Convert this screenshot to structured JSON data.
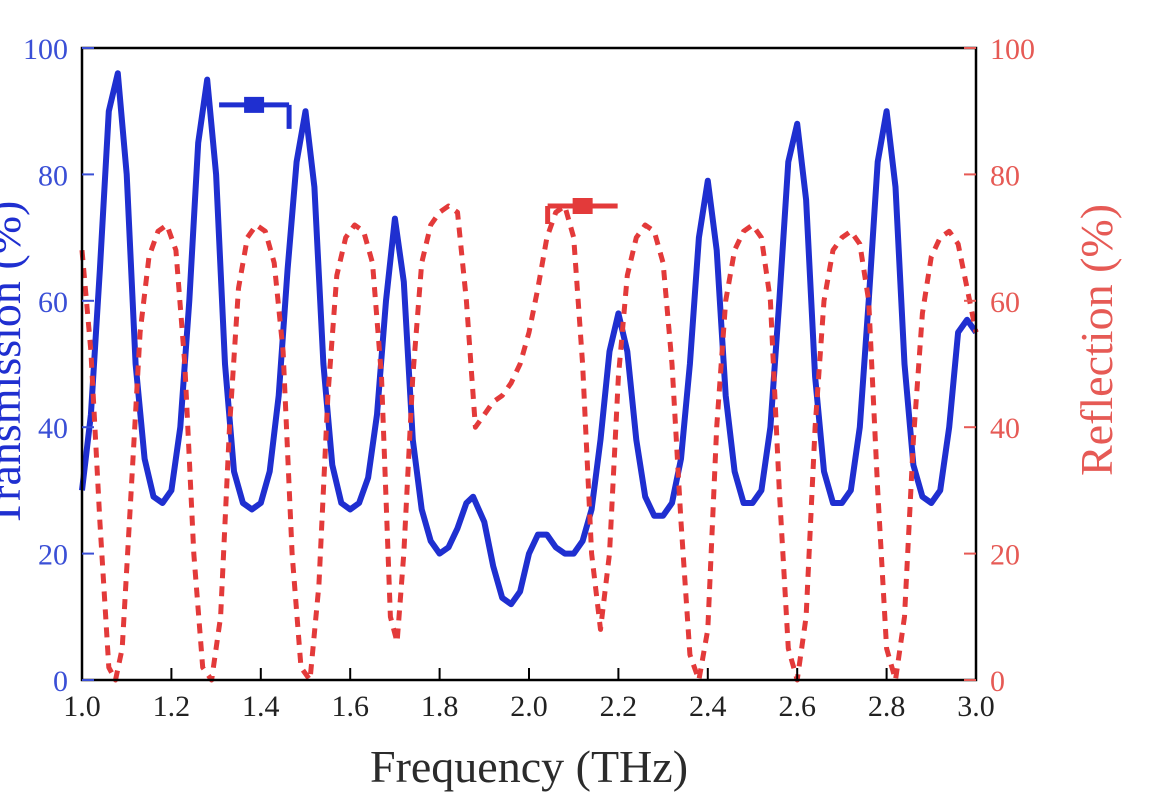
{
  "chart_data": {
    "type": "line",
    "title": "",
    "xlabel": "Frequency (THz)",
    "ylabel_left": "Transmission (%)",
    "ylabel_right": "Reflection (%)",
    "xlim": [
      1.0,
      3.0
    ],
    "ylim_left": [
      0,
      100
    ],
    "ylim_right": [
      0,
      100
    ],
    "x_ticks": [
      1.0,
      1.2,
      1.4,
      1.6,
      1.8,
      2.0,
      2.2,
      2.4,
      2.6,
      2.8,
      3.0
    ],
    "x_tick_labels": [
      "1.0",
      "1.2",
      "1.4",
      "1.6",
      "1.8",
      "2.0",
      "2.2",
      "2.4",
      "2.6",
      "2.8",
      "3.0"
    ],
    "y_ticks": [
      0,
      20,
      40,
      60,
      80,
      100
    ],
    "y_tick_labels": [
      "0",
      "20",
      "40",
      "60",
      "80",
      "100"
    ],
    "grid": false,
    "colors": {
      "transmission": "#1f2fd0",
      "reflection": "#e33a3a",
      "axis_left": "#3a4fd6",
      "axis_right": "#e65a55",
      "frame": "#000000"
    },
    "series": [
      {
        "name": "Transmission",
        "axis": "left",
        "style": "solid",
        "marker_at": {
          "x": 1.385,
          "y": 91
        },
        "points": [
          [
            1.0,
            30
          ],
          [
            1.02,
            42
          ],
          [
            1.04,
            65
          ],
          [
            1.06,
            90
          ],
          [
            1.08,
            96
          ],
          [
            1.1,
            80
          ],
          [
            1.12,
            50
          ],
          [
            1.14,
            35
          ],
          [
            1.16,
            29
          ],
          [
            1.18,
            28
          ],
          [
            1.2,
            30
          ],
          [
            1.22,
            40
          ],
          [
            1.24,
            60
          ],
          [
            1.26,
            85
          ],
          [
            1.28,
            95
          ],
          [
            1.3,
            80
          ],
          [
            1.32,
            50
          ],
          [
            1.34,
            33
          ],
          [
            1.36,
            28
          ],
          [
            1.38,
            27
          ],
          [
            1.4,
            28
          ],
          [
            1.42,
            33
          ],
          [
            1.44,
            45
          ],
          [
            1.46,
            65
          ],
          [
            1.48,
            82
          ],
          [
            1.5,
            90
          ],
          [
            1.52,
            78
          ],
          [
            1.54,
            50
          ],
          [
            1.56,
            34
          ],
          [
            1.58,
            28
          ],
          [
            1.6,
            27
          ],
          [
            1.62,
            28
          ],
          [
            1.64,
            32
          ],
          [
            1.66,
            42
          ],
          [
            1.68,
            60
          ],
          [
            1.7,
            73
          ],
          [
            1.72,
            63
          ],
          [
            1.74,
            38
          ],
          [
            1.76,
            27
          ],
          [
            1.78,
            22
          ],
          [
            1.8,
            20
          ],
          [
            1.82,
            21
          ],
          [
            1.84,
            24
          ],
          [
            1.86,
            28
          ],
          [
            1.875,
            29
          ],
          [
            1.9,
            25
          ],
          [
            1.92,
            18
          ],
          [
            1.94,
            13
          ],
          [
            1.96,
            12
          ],
          [
            1.98,
            14
          ],
          [
            2.0,
            20
          ],
          [
            2.02,
            23
          ],
          [
            2.04,
            23
          ],
          [
            2.06,
            21
          ],
          [
            2.08,
            20
          ],
          [
            2.1,
            20
          ],
          [
            2.12,
            22
          ],
          [
            2.14,
            27
          ],
          [
            2.16,
            38
          ],
          [
            2.18,
            52
          ],
          [
            2.2,
            58
          ],
          [
            2.22,
            52
          ],
          [
            2.24,
            38
          ],
          [
            2.26,
            29
          ],
          [
            2.28,
            26
          ],
          [
            2.3,
            26
          ],
          [
            2.32,
            28
          ],
          [
            2.34,
            35
          ],
          [
            2.36,
            50
          ],
          [
            2.38,
            70
          ],
          [
            2.4,
            79
          ],
          [
            2.42,
            68
          ],
          [
            2.44,
            45
          ],
          [
            2.46,
            33
          ],
          [
            2.48,
            28
          ],
          [
            2.5,
            28
          ],
          [
            2.52,
            30
          ],
          [
            2.54,
            40
          ],
          [
            2.56,
            60
          ],
          [
            2.58,
            82
          ],
          [
            2.6,
            88
          ],
          [
            2.62,
            76
          ],
          [
            2.64,
            48
          ],
          [
            2.66,
            33
          ],
          [
            2.68,
            28
          ],
          [
            2.7,
            28
          ],
          [
            2.72,
            30
          ],
          [
            2.74,
            40
          ],
          [
            2.76,
            60
          ],
          [
            2.78,
            82
          ],
          [
            2.8,
            90
          ],
          [
            2.82,
            78
          ],
          [
            2.84,
            50
          ],
          [
            2.86,
            34
          ],
          [
            2.88,
            29
          ],
          [
            2.9,
            28
          ],
          [
            2.92,
            30
          ],
          [
            2.94,
            40
          ],
          [
            2.96,
            55
          ],
          [
            2.98,
            57
          ],
          [
            3.0,
            55
          ]
        ]
      },
      {
        "name": "Reflection",
        "axis": "right",
        "style": "dashed",
        "marker_at": {
          "x": 2.12,
          "y": 75
        },
        "points": [
          [
            1.0,
            68
          ],
          [
            1.02,
            52
          ],
          [
            1.04,
            25
          ],
          [
            1.06,
            2
          ],
          [
            1.075,
            0
          ],
          [
            1.09,
            5
          ],
          [
            1.11,
            30
          ],
          [
            1.13,
            55
          ],
          [
            1.15,
            67
          ],
          [
            1.17,
            71
          ],
          [
            1.19,
            72
          ],
          [
            1.21,
            68
          ],
          [
            1.23,
            50
          ],
          [
            1.25,
            20
          ],
          [
            1.27,
            2
          ],
          [
            1.29,
            0
          ],
          [
            1.31,
            10
          ],
          [
            1.33,
            40
          ],
          [
            1.35,
            62
          ],
          [
            1.37,
            70
          ],
          [
            1.39,
            72
          ],
          [
            1.41,
            71
          ],
          [
            1.43,
            66
          ],
          [
            1.45,
            52
          ],
          [
            1.47,
            20
          ],
          [
            1.49,
            2
          ],
          [
            1.51,
            0
          ],
          [
            1.53,
            15
          ],
          [
            1.55,
            45
          ],
          [
            1.57,
            64
          ],
          [
            1.59,
            70
          ],
          [
            1.61,
            72
          ],
          [
            1.63,
            71
          ],
          [
            1.65,
            66
          ],
          [
            1.67,
            48
          ],
          [
            1.69,
            10
          ],
          [
            1.705,
            6
          ],
          [
            1.72,
            20
          ],
          [
            1.74,
            48
          ],
          [
            1.76,
            66
          ],
          [
            1.78,
            72
          ],
          [
            1.8,
            74
          ],
          [
            1.82,
            75
          ],
          [
            1.84,
            74
          ],
          [
            1.86,
            60
          ],
          [
            1.88,
            40
          ],
          [
            1.9,
            42
          ],
          [
            1.92,
            44
          ],
          [
            1.94,
            45
          ],
          [
            1.96,
            47
          ],
          [
            1.98,
            50
          ],
          [
            2.0,
            55
          ],
          [
            2.02,
            62
          ],
          [
            2.04,
            70
          ],
          [
            2.06,
            74
          ],
          [
            2.08,
            75
          ],
          [
            2.1,
            70
          ],
          [
            2.12,
            50
          ],
          [
            2.14,
            20
          ],
          [
            2.16,
            8
          ],
          [
            2.18,
            20
          ],
          [
            2.2,
            48
          ],
          [
            2.22,
            64
          ],
          [
            2.24,
            70
          ],
          [
            2.26,
            72
          ],
          [
            2.28,
            71
          ],
          [
            2.3,
            66
          ],
          [
            2.32,
            50
          ],
          [
            2.34,
            25
          ],
          [
            2.36,
            4
          ],
          [
            2.38,
            0
          ],
          [
            2.4,
            8
          ],
          [
            2.42,
            40
          ],
          [
            2.44,
            60
          ],
          [
            2.46,
            68
          ],
          [
            2.48,
            71
          ],
          [
            2.5,
            72
          ],
          [
            2.52,
            70
          ],
          [
            2.54,
            60
          ],
          [
            2.56,
            30
          ],
          [
            2.58,
            5
          ],
          [
            2.6,
            0
          ],
          [
            2.62,
            10
          ],
          [
            2.64,
            40
          ],
          [
            2.66,
            60
          ],
          [
            2.68,
            68
          ],
          [
            2.7,
            70
          ],
          [
            2.72,
            71
          ],
          [
            2.74,
            69
          ],
          [
            2.76,
            60
          ],
          [
            2.78,
            30
          ],
          [
            2.8,
            5
          ],
          [
            2.82,
            0
          ],
          [
            2.84,
            10
          ],
          [
            2.86,
            38
          ],
          [
            2.88,
            58
          ],
          [
            2.9,
            67
          ],
          [
            2.92,
            70
          ],
          [
            2.94,
            71
          ],
          [
            2.96,
            69
          ],
          [
            2.98,
            62
          ],
          [
            3.0,
            55
          ]
        ]
      }
    ]
  }
}
